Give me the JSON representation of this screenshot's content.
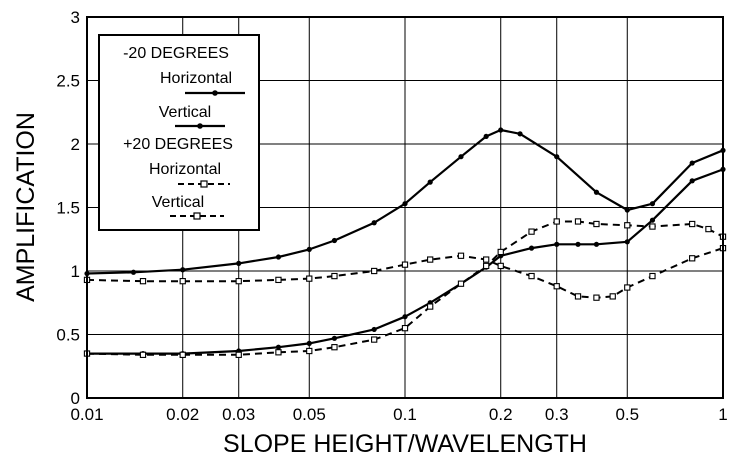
{
  "chart_data": {
    "type": "line",
    "title": "",
    "xlabel": "SLOPE HEIGHT/WAVELENGTH",
    "ylabel": "AMPLIFICATION",
    "xscale": "log",
    "xlim": [
      0.01,
      1
    ],
    "ylim": [
      0,
      3
    ],
    "grid": true,
    "legend_position": "top-left",
    "x_ticks": [
      {
        "value": 0.01,
        "label": "0.01"
      },
      {
        "value": 0.02,
        "label": "0.02"
      },
      {
        "value": 0.03,
        "label": "0.03"
      },
      {
        "value": 0.05,
        "label": "0.05"
      },
      {
        "value": 0.1,
        "label": "0.1"
      },
      {
        "value": 0.2,
        "label": "0.2"
      },
      {
        "value": 0.3,
        "label": "0.3"
      },
      {
        "value": 0.5,
        "label": "0.5"
      },
      {
        "value": 1,
        "label": "1"
      }
    ],
    "y_ticks": [
      {
        "value": 0,
        "label": "0"
      },
      {
        "value": 0.5,
        "label": "0.5"
      },
      {
        "value": 1,
        "label": "1"
      },
      {
        "value": 1.5,
        "label": "1.5"
      },
      {
        "value": 2,
        "label": "2"
      },
      {
        "value": 2.5,
        "label": "2.5"
      },
      {
        "value": 3,
        "label": "3"
      }
    ],
    "legend": {
      "groups": [
        {
          "heading": "-20 DEGREES",
          "entries": [
            {
              "label": "Horizontal",
              "series": 0
            },
            {
              "label": "Vertical",
              "series": 1
            }
          ]
        },
        {
          "heading": "+20 DEGREES",
          "entries": [
            {
              "label": "Horizontal",
              "series": 2
            },
            {
              "label": "Vertical",
              "series": 3
            }
          ]
        }
      ]
    },
    "series": [
      {
        "style": "solid",
        "marker": "filled-dot",
        "color": "#000000",
        "x": [
          0.01,
          0.014,
          0.02,
          0.03,
          0.04,
          0.05,
          0.06,
          0.08,
          0.1,
          0.12,
          0.15,
          0.18,
          0.2,
          0.23,
          0.3,
          0.4,
          0.5,
          0.6,
          0.8,
          1.0
        ],
        "y": [
          0.98,
          0.99,
          1.01,
          1.06,
          1.11,
          1.17,
          1.24,
          1.38,
          1.53,
          1.7,
          1.9,
          2.06,
          2.11,
          2.08,
          1.9,
          1.62,
          1.48,
          1.53,
          1.85,
          1.95
        ]
      },
      {
        "style": "solid",
        "marker": "filled-dot",
        "color": "#000000",
        "x": [
          0.01,
          0.015,
          0.02,
          0.03,
          0.04,
          0.05,
          0.06,
          0.08,
          0.1,
          0.12,
          0.15,
          0.18,
          0.2,
          0.25,
          0.3,
          0.35,
          0.4,
          0.5,
          0.6,
          0.8,
          1.0
        ],
        "y": [
          0.35,
          0.35,
          0.35,
          0.37,
          0.4,
          0.43,
          0.47,
          0.54,
          0.64,
          0.75,
          0.9,
          1.03,
          1.12,
          1.18,
          1.21,
          1.21,
          1.21,
          1.23,
          1.4,
          1.71,
          1.8
        ]
      },
      {
        "style": "dashed",
        "marker": "open-square",
        "color": "#000000",
        "x": [
          0.01,
          0.015,
          0.02,
          0.03,
          0.04,
          0.05,
          0.06,
          0.08,
          0.1,
          0.12,
          0.15,
          0.18,
          0.2,
          0.25,
          0.3,
          0.35,
          0.4,
          0.45,
          0.5,
          0.6,
          0.8,
          1.0
        ],
        "y": [
          0.93,
          0.92,
          0.92,
          0.92,
          0.93,
          0.94,
          0.96,
          1.0,
          1.05,
          1.09,
          1.12,
          1.09,
          1.04,
          0.96,
          0.88,
          0.8,
          0.79,
          0.8,
          0.87,
          0.96,
          1.1,
          1.18
        ]
      },
      {
        "style": "dashed",
        "marker": "open-square",
        "color": "#000000",
        "x": [
          0.01,
          0.015,
          0.02,
          0.03,
          0.04,
          0.05,
          0.06,
          0.08,
          0.1,
          0.12,
          0.15,
          0.18,
          0.2,
          0.25,
          0.3,
          0.35,
          0.4,
          0.5,
          0.6,
          0.8,
          0.9,
          1.0
        ],
        "y": [
          0.35,
          0.34,
          0.34,
          0.34,
          0.36,
          0.37,
          0.4,
          0.46,
          0.55,
          0.72,
          0.9,
          1.04,
          1.15,
          1.31,
          1.39,
          1.39,
          1.37,
          1.36,
          1.35,
          1.37,
          1.33,
          1.27
        ]
      }
    ]
  }
}
